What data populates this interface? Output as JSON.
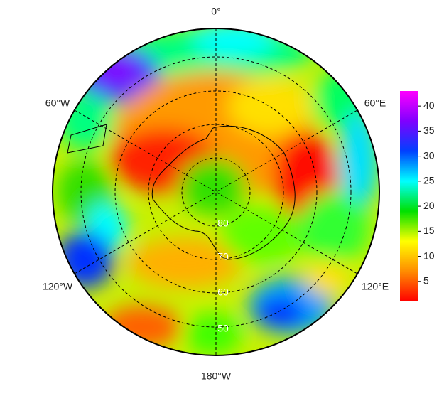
{
  "map": {
    "longitude_labels": [
      "0°",
      "60°E",
      "120°E",
      "180°W",
      "120°W",
      "60°W"
    ],
    "latitude_labels": [
      "80",
      "70",
      "60",
      "50"
    ],
    "colorbar": {
      "lim": [
        1,
        43
      ],
      "ticks": [
        5,
        10,
        15,
        20,
        25,
        30,
        35,
        40
      ],
      "colors": [
        "#ff0000",
        "#ff8c00",
        "#ffff00",
        "#00e000",
        "#00ffff",
        "#0040ff",
        "#8000ff",
        "#ff00ff"
      ]
    }
  }
}
